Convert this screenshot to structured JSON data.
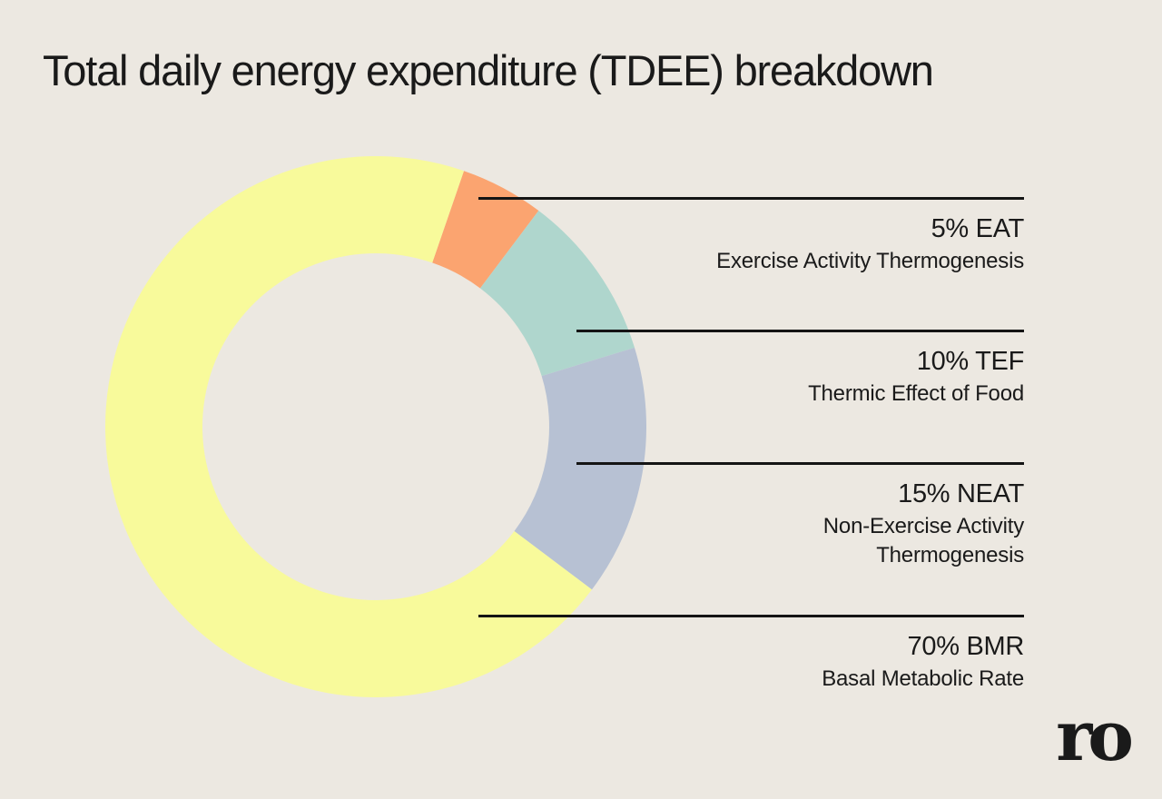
{
  "page": {
    "title": "Total daily energy expenditure (TDEE) breakdown",
    "background_color": "#ECE8E1",
    "text_color": "#1A1A1A",
    "callout_line_color": "#141414",
    "logo_text": "ro"
  },
  "chart_data": {
    "type": "pie",
    "variant": "donut",
    "title": "Total daily energy expenditure (TDEE) breakdown",
    "start_angle_deg": 19,
    "inner_radius_ratio": 0.64,
    "legend_position": "right-callouts",
    "slices": [
      {
        "pct": 5,
        "abbr": "EAT",
        "value_label": "5% EAT",
        "name": "Exercise Activity Thermogenesis",
        "name_lines": [
          "Exercise Activity Thermogenesis"
        ],
        "color": "#FBA470"
      },
      {
        "pct": 10,
        "abbr": "TEF",
        "value_label": "10% TEF",
        "name": "Thermic Effect of Food",
        "name_lines": [
          "Thermic Effect of Food"
        ],
        "color": "#AFD6CD"
      },
      {
        "pct": 15,
        "abbr": "NEAT",
        "value_label": "15% NEAT",
        "name": "Non-Exercise Activity Thermogenesis",
        "name_lines": [
          "Non-Exercise Activity",
          "Thermogenesis"
        ],
        "color": "#B7C1D3"
      },
      {
        "pct": 70,
        "abbr": "BMR",
        "value_label": "70% BMR",
        "name": "Basal Metabolic Rate",
        "name_lines": [
          "Basal Metabolic Rate"
        ],
        "color": "#F8FA9B"
      }
    ]
  }
}
